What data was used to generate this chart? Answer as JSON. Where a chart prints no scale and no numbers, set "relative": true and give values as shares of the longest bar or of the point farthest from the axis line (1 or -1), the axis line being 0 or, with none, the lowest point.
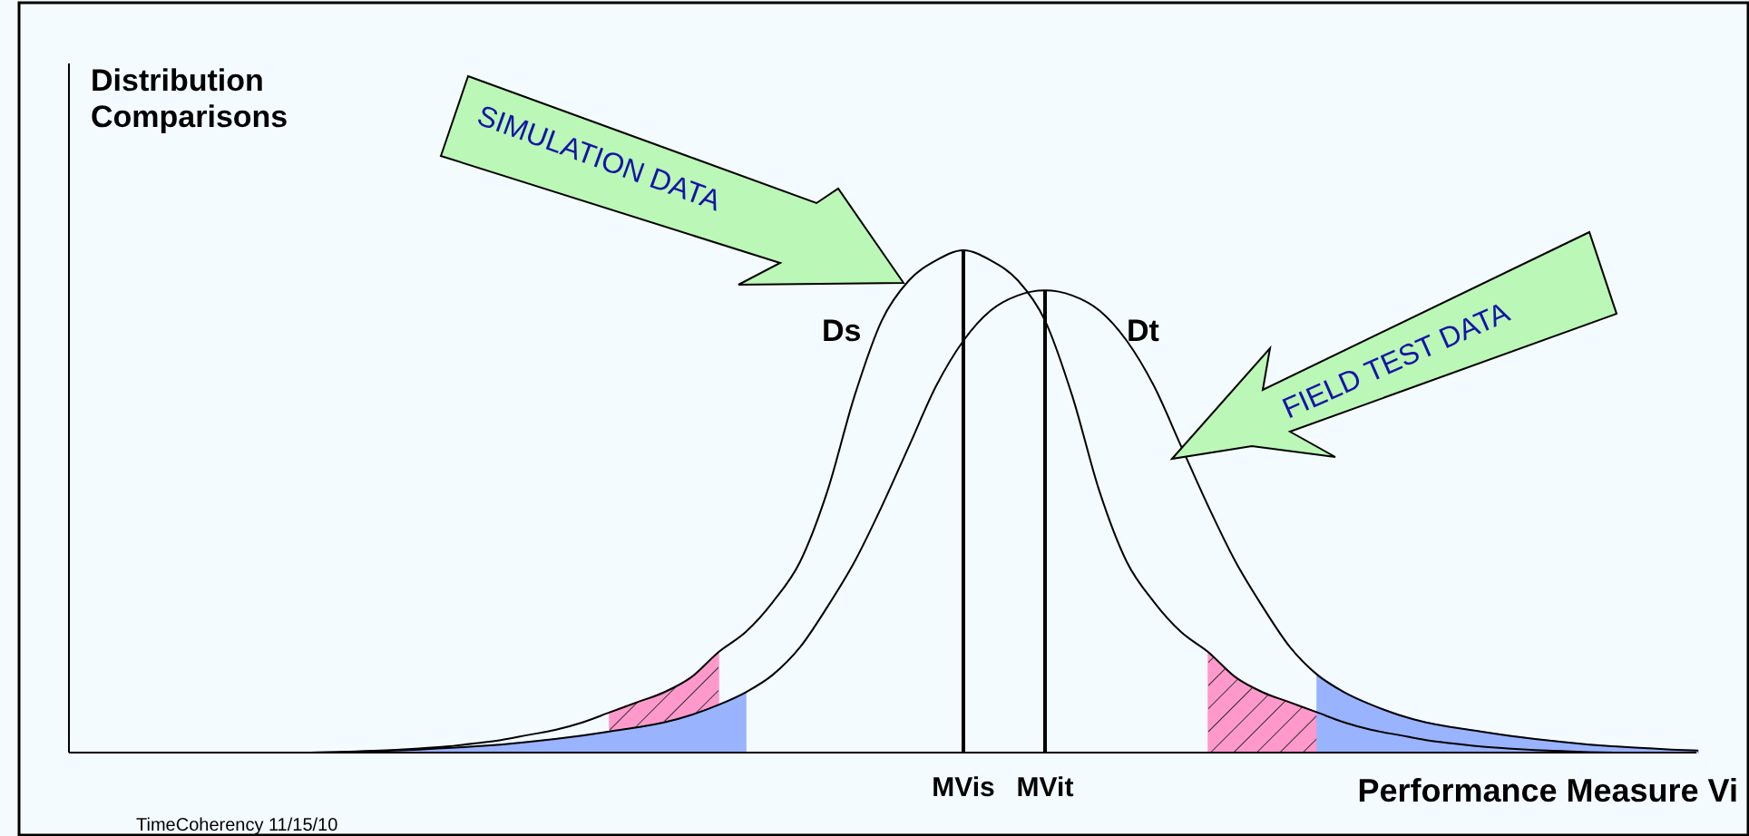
{
  "chart_data": {
    "type": "line",
    "relative": true,
    "ylabel": "Distribution Comparisons",
    "xlabel": "Performance Measure Vi",
    "categories": [
      null,
      null,
      null,
      null,
      null,
      null,
      null,
      null,
      null,
      null,
      null,
      null,
      null,
      null,
      null,
      null,
      null,
      null,
      null,
      null,
      null,
      null,
      null,
      null,
      null,
      null,
      null,
      null,
      null,
      null,
      null,
      null,
      null,
      "MVis",
      null,
      null,
      "MVit",
      null,
      null,
      null,
      null,
      null,
      null,
      null,
      null,
      null,
      null,
      null,
      null,
      null,
      null,
      null,
      null,
      null,
      null,
      null,
      null,
      null,
      null,
      null,
      null
    ],
    "series": [
      {
        "name": "Ds",
        "color": "#000000",
        "values": [
          null,
          null,
          null,
          null,
          null,
          null,
          null,
          null,
          null,
          0,
          0.001,
          0.003,
          0.005,
          0.008,
          0.012,
          0.018,
          0.025,
          0.035,
          0.045,
          0.06,
          0.08,
          0.1,
          0.12,
          0.15,
          0.2,
          0.24,
          0.3,
          0.38,
          0.52,
          0.71,
          0.86,
          0.94,
          0.98,
          1,
          0.98,
          0.94,
          0.86,
          0.71,
          0.52,
          0.38,
          0.3,
          0.24,
          0.2,
          0.15,
          0.12,
          0.1,
          0.08,
          0.06,
          0.045,
          0.035,
          0.025,
          0.018,
          0.012,
          0.008,
          0.005,
          0.003,
          0.001,
          0,
          null,
          null,
          null
        ]
      },
      {
        "name": "Dt",
        "color": "#000000",
        "values": [
          null,
          null,
          null,
          null,
          null,
          null,
          null,
          null,
          null,
          0,
          0.001,
          0.002,
          0.004,
          0.006,
          0.009,
          0.012,
          0.016,
          0.021,
          0.027,
          0.034,
          0.042,
          0.05,
          0.06,
          0.075,
          0.095,
          0.12,
          0.155,
          0.21,
          0.29,
          0.38,
          0.49,
          0.61,
          0.73,
          0.82,
          0.88,
          0.91,
          0.92,
          0.91,
          0.88,
          0.82,
          0.73,
          0.61,
          0.49,
          0.38,
          0.29,
          0.21,
          0.155,
          0.12,
          0.095,
          0.075,
          0.06,
          0.05,
          0.042,
          0.034,
          0.027,
          0.021,
          0.016,
          0.012,
          0.009,
          0.006,
          0.004
        ]
      },
      {
        "type": "area",
        "color": "#ff99cc",
        "values": [
          null,
          null,
          null,
          null,
          null,
          null,
          null,
          null,
          null,
          null,
          null,
          null,
          null,
          null,
          null,
          null,
          null,
          null,
          null,
          null,
          0.08,
          0.1,
          0.12,
          0.15,
          0.2,
          null,
          null,
          null,
          null,
          null,
          null,
          null,
          null,
          null,
          null,
          null,
          null,
          null,
          null,
          null,
          null,
          null,
          0.2,
          0.15,
          0.12,
          0.1,
          0.08,
          null,
          null,
          null,
          null,
          null,
          null,
          null,
          null,
          null,
          null,
          null,
          null,
          null,
          null
        ]
      },
      {
        "type": "area",
        "color": "#99b3ff",
        "values": [
          null,
          null,
          null,
          null,
          null,
          null,
          null,
          null,
          null,
          null,
          0.001,
          0.002,
          0.004,
          0.006,
          0.009,
          0.012,
          0.016,
          0.021,
          0.027,
          0.034,
          0.042,
          0.05,
          0.06,
          0.075,
          0.095,
          0.12,
          null,
          null,
          null,
          null,
          null,
          null,
          null,
          null,
          null,
          null,
          null,
          null,
          null,
          null,
          null,
          null,
          null,
          null,
          null,
          null,
          0.155,
          0.12,
          0.095,
          0.075,
          0.06,
          0.05,
          0.042,
          0.034,
          0.027,
          0.021,
          0.016,
          0.012,
          0.009,
          0.006,
          0.004
        ]
      }
    ],
    "ref_lines": [
      {
        "axis": "x",
        "value": "MVis",
        "color": "#000000"
      },
      {
        "axis": "x",
        "value": "MVit",
        "color": "#000000"
      }
    ],
    "annotations": [
      "SIMULATION DATA",
      "FIELD TEST DATA",
      "TimeCoherency  11/15/10"
    ]
  }
}
